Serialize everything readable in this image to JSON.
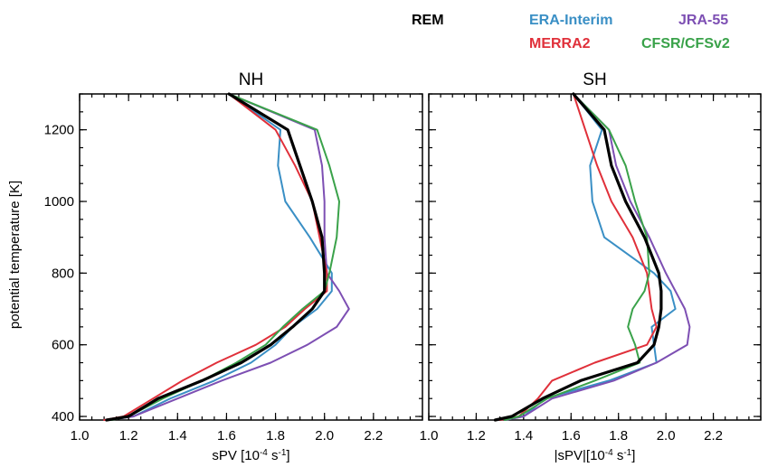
{
  "legend": [
    {
      "name": "REM",
      "color": "#000000"
    },
    {
      "name": "ERA-Interim",
      "color": "#3a8fc5"
    },
    {
      "name": "JRA-55",
      "color": "#7d4fb3"
    },
    {
      "name": "MERRA2",
      "color": "#e0303a"
    },
    {
      "name": "CFSR/CFSv2",
      "color": "#3aa24a"
    }
  ],
  "chart_data": [
    {
      "type": "line",
      "title": "NH",
      "xlabel": "sPV [10",
      "xlabel_exp": "-4",
      "xlabel_mid": " s",
      "xlabel_exp2": "-1",
      "xlabel_end": "]",
      "ylabel": "potential temperature [K]",
      "xlim": [
        1.0,
        2.4
      ],
      "ylim": [
        390,
        1300
      ],
      "xticks": [
        "1.0",
        "1.2",
        "1.4",
        "1.6",
        "1.8",
        "2.0",
        "2.2"
      ],
      "yticks": [
        "400",
        "600",
        "800",
        "1000",
        "1200"
      ],
      "y": [
        1300,
        1200,
        1100,
        1000,
        900,
        800,
        750,
        700,
        650,
        600,
        550,
        500,
        450,
        400,
        390
      ],
      "series": [
        {
          "name": "REM",
          "color": "#000000",
          "width": 3.2,
          "values": [
            1.61,
            1.85,
            1.9,
            1.95,
            1.99,
            2.0,
            2.0,
            1.95,
            1.87,
            1.78,
            1.66,
            1.5,
            1.32,
            1.2,
            1.11
          ]
        },
        {
          "name": "ERA-Interim",
          "color": "#3a8fc5",
          "width": 2,
          "values": [
            1.61,
            1.82,
            1.81,
            1.84,
            1.94,
            2.03,
            2.03,
            1.97,
            1.87,
            1.8,
            1.7,
            1.55,
            1.37,
            1.22,
            1.12
          ]
        },
        {
          "name": "JRA-55",
          "color": "#7d4fb3",
          "width": 2,
          "values": [
            1.61,
            1.96,
            1.99,
            2.0,
            2.0,
            2.01,
            2.06,
            2.1,
            2.05,
            1.93,
            1.78,
            1.58,
            1.4,
            1.22,
            1.12
          ]
        },
        {
          "name": "MERRA2",
          "color": "#e0303a",
          "width": 2,
          "values": [
            1.61,
            1.8,
            1.88,
            1.95,
            1.98,
            2.01,
            2.01,
            1.92,
            1.84,
            1.72,
            1.56,
            1.42,
            1.3,
            1.18,
            1.1
          ]
        },
        {
          "name": "CFSR/CFSv2",
          "color": "#3aa24a",
          "width": 2,
          "values": [
            1.61,
            1.97,
            2.02,
            2.06,
            2.05,
            2.02,
            2.0,
            1.91,
            1.83,
            1.76,
            1.64,
            1.5,
            1.34,
            1.2,
            1.13
          ]
        }
      ]
    },
    {
      "type": "line",
      "title": "SH",
      "xlabel": "|sPV|[10",
      "xlabel_exp": "-4",
      "xlabel_mid": " s",
      "xlabel_exp2": "-1",
      "xlabel_end": "]",
      "ylabel": "",
      "xlim": [
        1.0,
        2.4
      ],
      "ylim": [
        390,
        1300
      ],
      "xticks": [
        "1.0",
        "1.2",
        "1.4",
        "1.6",
        "1.8",
        "2.0",
        "2.2"
      ],
      "yticks": [
        "400",
        "600",
        "800",
        "1000",
        "1200"
      ],
      "y": [
        1300,
        1200,
        1100,
        1000,
        900,
        800,
        750,
        700,
        650,
        600,
        550,
        500,
        450,
        400,
        390
      ],
      "series": [
        {
          "name": "REM",
          "color": "#000000",
          "width": 3.2,
          "values": [
            1.61,
            1.74,
            1.77,
            1.83,
            1.91,
            1.97,
            1.98,
            1.98,
            1.97,
            1.95,
            1.88,
            1.64,
            1.48,
            1.35,
            1.28
          ]
        },
        {
          "name": "ERA-Interim",
          "color": "#3a8fc5",
          "width": 2,
          "values": [
            1.61,
            1.73,
            1.68,
            1.69,
            1.74,
            1.95,
            2.02,
            2.04,
            1.94,
            1.95,
            1.96,
            1.76,
            1.49,
            1.4,
            1.32
          ]
        },
        {
          "name": "JRA-55",
          "color": "#7d4fb3",
          "width": 2,
          "values": [
            1.61,
            1.76,
            1.79,
            1.85,
            1.93,
            2.0,
            2.04,
            2.08,
            2.1,
            2.09,
            1.96,
            1.78,
            1.52,
            1.4,
            1.32
          ]
        },
        {
          "name": "MERRA2",
          "color": "#e0303a",
          "width": 2,
          "values": [
            1.61,
            1.66,
            1.71,
            1.77,
            1.86,
            1.92,
            1.93,
            1.94,
            1.96,
            1.92,
            1.7,
            1.52,
            1.46,
            1.38,
            1.3
          ]
        },
        {
          "name": "CFSR/CFSv2",
          "color": "#3aa24a",
          "width": 2,
          "values": [
            1.61,
            1.76,
            1.83,
            1.87,
            1.92,
            1.93,
            1.91,
            1.86,
            1.84,
            1.87,
            1.89,
            1.7,
            1.5,
            1.38,
            1.32
          ]
        }
      ]
    }
  ]
}
